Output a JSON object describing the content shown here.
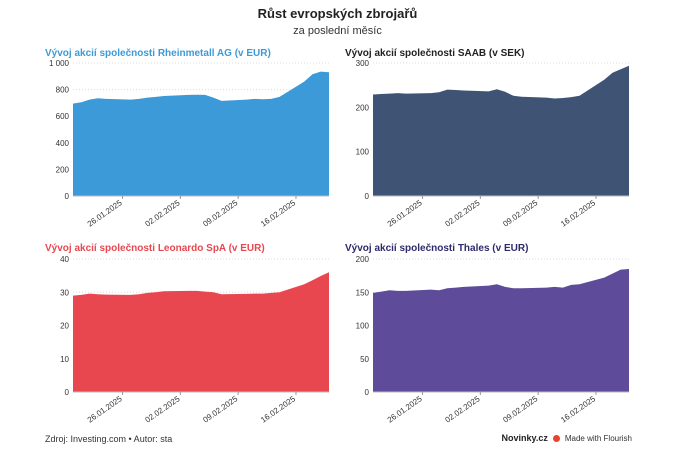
{
  "header": {
    "title": "Růst evropských zbrojařů",
    "subtitle": "za poslední měsíc"
  },
  "footer": {
    "source": "Zdroj: Investing.com • Autor: sta",
    "brand": "Novinky.cz",
    "flourish": "Made with Flourish"
  },
  "chart_data": [
    {
      "type": "area",
      "title": "Vývoj akcií společnosti Rheinmetall AG (v EUR)",
      "color": "#3d9ad8",
      "title_color": "#3d9ad8",
      "ylim": [
        0,
        1000
      ],
      "y_ticks": [
        0,
        200,
        400,
        600,
        800,
        1000
      ],
      "y_tick_labels": [
        "0",
        "200",
        "400",
        "600",
        "800",
        "1 000"
      ],
      "x_range": [
        "2025-01-20",
        "2025-02-20"
      ],
      "x_ticks": [
        "2025-01-26",
        "2025-02-02",
        "2025-02-09",
        "2025-02-16"
      ],
      "x_tick_labels": [
        "26.01.2025",
        "02.02.2025",
        "09.02.2025",
        "16.02.2025"
      ],
      "x": [
        "2025-01-20",
        "2025-01-21",
        "2025-01-22",
        "2025-01-23",
        "2025-01-24",
        "2025-01-27",
        "2025-01-28",
        "2025-01-29",
        "2025-01-30",
        "2025-01-31",
        "2025-02-03",
        "2025-02-04",
        "2025-02-05",
        "2025-02-06",
        "2025-02-07",
        "2025-02-10",
        "2025-02-11",
        "2025-02-12",
        "2025-02-13",
        "2025-02-14",
        "2025-02-17",
        "2025-02-18",
        "2025-02-19",
        "2025-02-20"
      ],
      "values": [
        695,
        705,
        725,
        735,
        730,
        725,
        730,
        740,
        745,
        752,
        760,
        762,
        760,
        740,
        715,
        725,
        730,
        728,
        730,
        745,
        860,
        915,
        935,
        930
      ]
    },
    {
      "type": "area",
      "title": "Vývoj akcií společnosti SAAB (v SEK)",
      "color": "#3f5475",
      "title_color": "#222222",
      "ylim": [
        0,
        300
      ],
      "y_ticks": [
        0,
        100,
        200,
        300
      ],
      "y_tick_labels": [
        "0",
        "100",
        "200",
        "300"
      ],
      "x_range": [
        "2025-01-20",
        "2025-02-20"
      ],
      "x_ticks": [
        "2025-01-26",
        "2025-02-02",
        "2025-02-09",
        "2025-02-16"
      ],
      "x_tick_labels": [
        "26.01.2025",
        "02.02.2025",
        "09.02.2025",
        "16.02.2025"
      ],
      "x": [
        "2025-01-20",
        "2025-01-21",
        "2025-01-22",
        "2025-01-23",
        "2025-01-24",
        "2025-01-27",
        "2025-01-28",
        "2025-01-29",
        "2025-01-30",
        "2025-01-31",
        "2025-02-03",
        "2025-02-04",
        "2025-02-05",
        "2025-02-06",
        "2025-02-07",
        "2025-02-10",
        "2025-02-11",
        "2025-02-12",
        "2025-02-13",
        "2025-02-14",
        "2025-02-17",
        "2025-02-18",
        "2025-02-19",
        "2025-02-20"
      ],
      "values": [
        229,
        230,
        231,
        232,
        231,
        232,
        234,
        240,
        239,
        238,
        236,
        241,
        235,
        226,
        224,
        222,
        220,
        221,
        223,
        226,
        262,
        278,
        286,
        294
      ]
    },
    {
      "type": "area",
      "title": "Vývoj akcií společnosti Leonardo SpA (v EUR)",
      "color": "#e8474f",
      "title_color": "#e8474f",
      "ylim": [
        0,
        40
      ],
      "y_ticks": [
        0,
        10,
        20,
        30,
        40
      ],
      "y_tick_labels": [
        "0",
        "10",
        "20",
        "30",
        "40"
      ],
      "x_range": [
        "2025-01-20",
        "2025-02-20"
      ],
      "x_ticks": [
        "2025-01-26",
        "2025-02-02",
        "2025-02-09",
        "2025-02-16"
      ],
      "x_tick_labels": [
        "26.01.2025",
        "02.02.2025",
        "09.02.2025",
        "16.02.2025"
      ],
      "x": [
        "2025-01-20",
        "2025-01-21",
        "2025-01-22",
        "2025-01-23",
        "2025-01-24",
        "2025-01-27",
        "2025-01-28",
        "2025-01-29",
        "2025-01-30",
        "2025-01-31",
        "2025-02-03",
        "2025-02-04",
        "2025-02-05",
        "2025-02-06",
        "2025-02-07",
        "2025-02-10",
        "2025-02-11",
        "2025-02-12",
        "2025-02-13",
        "2025-02-14",
        "2025-02-17",
        "2025-02-18",
        "2025-02-19",
        "2025-02-20"
      ],
      "values": [
        29.0,
        29.2,
        29.6,
        29.4,
        29.3,
        29.2,
        29.4,
        29.8,
        30.0,
        30.3,
        30.4,
        30.4,
        30.2,
        30.0,
        29.4,
        29.5,
        29.6,
        29.6,
        29.8,
        30.0,
        32.4,
        33.6,
        34.9,
        36.0
      ]
    },
    {
      "type": "area",
      "title": "Vývoj akcií společnosti Thales (v EUR)",
      "color": "#5e4b99",
      "title_color": "#2e2a6b",
      "ylim": [
        0,
        200
      ],
      "y_ticks": [
        0,
        50,
        100,
        150,
        200
      ],
      "y_tick_labels": [
        "0",
        "50",
        "100",
        "150",
        "200"
      ],
      "x_range": [
        "2025-01-20",
        "2025-02-20"
      ],
      "x_ticks": [
        "2025-01-26",
        "2025-02-02",
        "2025-02-09",
        "2025-02-16"
      ],
      "x_tick_labels": [
        "26.01.2025",
        "02.02.2025",
        "09.02.2025",
        "16.02.2025"
      ],
      "x": [
        "2025-01-20",
        "2025-01-21",
        "2025-01-22",
        "2025-01-23",
        "2025-01-24",
        "2025-01-27",
        "2025-01-28",
        "2025-01-29",
        "2025-01-30",
        "2025-01-31",
        "2025-02-03",
        "2025-02-04",
        "2025-02-05",
        "2025-02-06",
        "2025-02-07",
        "2025-02-10",
        "2025-02-11",
        "2025-02-12",
        "2025-02-13",
        "2025-02-14",
        "2025-02-17",
        "2025-02-18",
        "2025-02-19",
        "2025-02-20"
      ],
      "values": [
        149,
        151,
        153,
        152,
        152,
        154,
        153,
        156,
        157,
        158,
        160,
        162,
        158,
        156,
        156,
        157,
        158,
        157,
        161,
        162,
        172,
        178,
        184,
        185
      ]
    }
  ]
}
